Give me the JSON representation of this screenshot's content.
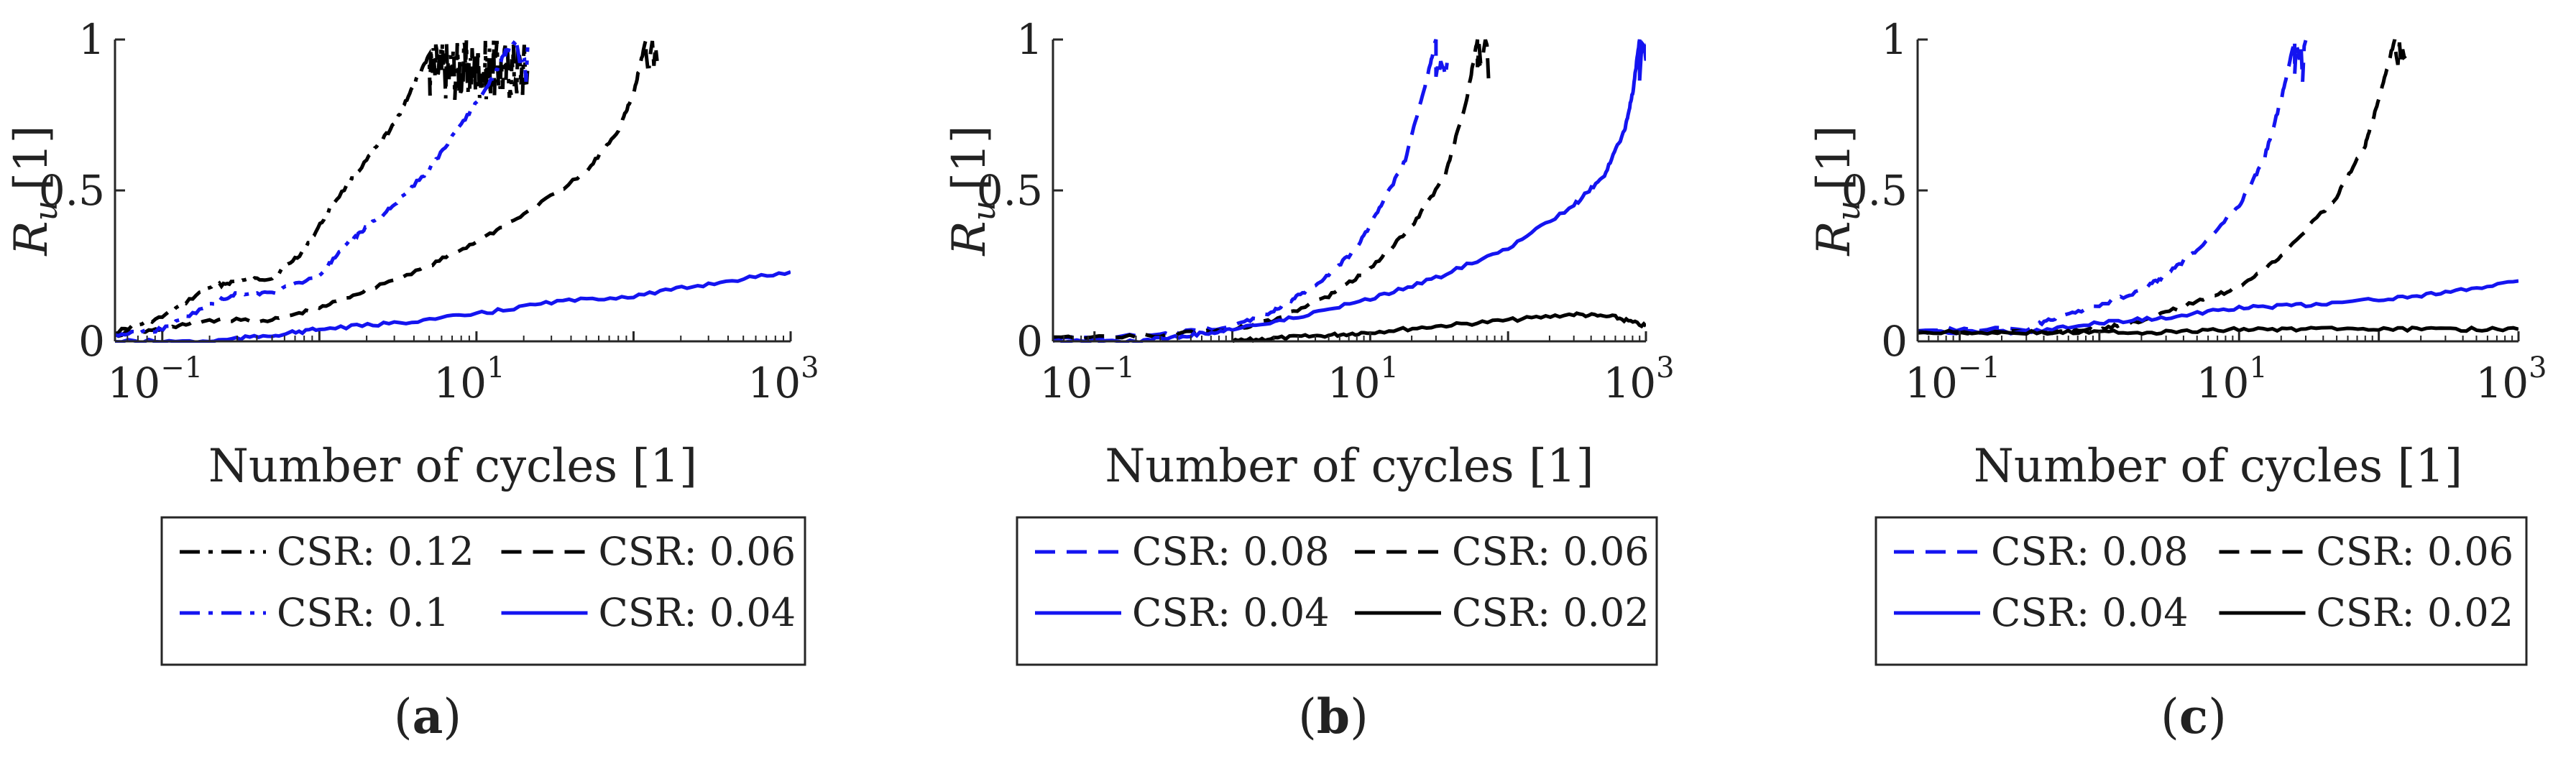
{
  "figure": {
    "captions": [
      "a",
      "b",
      "c"
    ]
  },
  "chart_data": [
    {
      "type": "line",
      "panel": "a",
      "xlabel": "Number of cycles [1]",
      "ylabel_main": "R",
      "ylabel_sub": "u",
      "ylabel_unit": "[1]",
      "xscale": "log",
      "xlim": [
        0.05,
        1000
      ],
      "ylim": [
        0,
        1
      ],
      "xticks": [
        {
          "base": "10",
          "exp": "−1",
          "value": 0.1
        },
        {
          "base": "10",
          "exp": "1",
          "value": 10
        },
        {
          "base": "10",
          "exp": "3",
          "value": 1000
        }
      ],
      "yticks": [
        {
          "label": "0",
          "value": 0
        },
        {
          "label": "0.5",
          "value": 0.5
        },
        {
          "label": "1",
          "value": 1
        }
      ],
      "legend_position": "below",
      "legend_columns": 2,
      "series": [
        {
          "name": "CSR: 0.12",
          "color": "#000000",
          "style": "dashdot",
          "x": [
            0.05,
            0.1,
            0.2,
            0.3,
            0.5,
            0.8,
            1.2,
            2,
            3,
            4,
            5
          ],
          "y": [
            0.03,
            0.08,
            0.18,
            0.2,
            0.21,
            0.3,
            0.45,
            0.6,
            0.72,
            0.85,
            0.95
          ],
          "noisy_tail": true
        },
        {
          "name": "CSR: 0.06",
          "color": "#000000",
          "style": "dashed",
          "x": [
            0.05,
            0.1,
            0.2,
            0.5,
            1,
            2,
            5,
            10,
            20,
            50,
            80,
            100,
            120
          ],
          "y": [
            0.02,
            0.04,
            0.07,
            0.07,
            0.11,
            0.17,
            0.25,
            0.33,
            0.42,
            0.56,
            0.7,
            0.82,
            1.0
          ]
        },
        {
          "name": "CSR: 0.1",
          "color": "#1414f0",
          "style": "dashdot",
          "x": [
            0.05,
            0.1,
            0.2,
            0.3,
            0.5,
            1,
            1.5,
            2,
            3,
            5,
            8,
            12,
            15,
            18
          ],
          "y": [
            0.02,
            0.04,
            0.12,
            0.16,
            0.16,
            0.22,
            0.32,
            0.38,
            0.45,
            0.57,
            0.72,
            0.85,
            0.95,
            1.0
          ]
        },
        {
          "name": "CSR: 0.04",
          "color": "#1414f0",
          "style": "solid",
          "x": [
            0.05,
            0.2,
            0.5,
            1,
            3,
            10,
            30,
            100,
            300,
            1000
          ],
          "y": [
            0.0,
            0.0,
            0.02,
            0.04,
            0.06,
            0.09,
            0.13,
            0.15,
            0.19,
            0.23
          ]
        }
      ]
    },
    {
      "type": "line",
      "panel": "b",
      "xlabel": "Number of cycles [1]",
      "ylabel_main": "R",
      "ylabel_sub": "u",
      "ylabel_unit": "[1]",
      "xscale": "log",
      "xlim": [
        0.05,
        1000
      ],
      "ylim": [
        0,
        1
      ],
      "xticks": [
        {
          "base": "10",
          "exp": "−1",
          "value": 0.1
        },
        {
          "base": "10",
          "exp": "1",
          "value": 10
        },
        {
          "base": "10",
          "exp": "3",
          "value": 1000
        }
      ],
      "yticks": [
        {
          "label": "0",
          "value": 0
        },
        {
          "label": "0.5",
          "value": 0.5
        },
        {
          "label": "1",
          "value": 1
        }
      ],
      "legend_position": "below",
      "legend_columns": 2,
      "series": [
        {
          "name": "CSR: 0.08",
          "color": "#1414f0",
          "style": "dashed",
          "x": [
            0.05,
            0.3,
            1,
            2,
            3,
            5,
            8,
            12,
            18,
            25,
            30
          ],
          "y": [
            0.01,
            0.02,
            0.05,
            0.1,
            0.15,
            0.22,
            0.31,
            0.45,
            0.6,
            0.85,
            1.0
          ]
        },
        {
          "name": "CSR: 0.06",
          "color": "#000000",
          "style": "dashed",
          "x": [
            0.05,
            0.3,
            1,
            2,
            5,
            10,
            20,
            35,
            50,
            60
          ],
          "y": [
            0.01,
            0.02,
            0.04,
            0.07,
            0.15,
            0.24,
            0.38,
            0.55,
            0.8,
            1.0
          ]
        },
        {
          "name": "CSR: 0.04",
          "color": "#1414f0",
          "style": "solid",
          "x": [
            0.05,
            0.2,
            0.5,
            1,
            3,
            10,
            30,
            100,
            300,
            500,
            700,
            800,
            900
          ],
          "y": [
            0.0,
            0.0,
            0.02,
            0.04,
            0.08,
            0.14,
            0.21,
            0.31,
            0.45,
            0.55,
            0.7,
            0.82,
            1.0
          ]
        },
        {
          "name": "CSR: 0.02",
          "color": "#000000",
          "style": "solid",
          "x": [
            1,
            2,
            5,
            10,
            30,
            100,
            300,
            600,
            1000
          ],
          "y": [
            0.0,
            0.01,
            0.02,
            0.03,
            0.05,
            0.07,
            0.09,
            0.08,
            0.05
          ]
        }
      ]
    },
    {
      "type": "line",
      "panel": "c",
      "xlabel": "Number of cycles [1]",
      "ylabel_main": "R",
      "ylabel_sub": "u",
      "ylabel_unit": "[1]",
      "xscale": "log",
      "xlim": [
        0.05,
        1000
      ],
      "ylim": [
        0,
        1
      ],
      "xticks": [
        {
          "base": "10",
          "exp": "−1",
          "value": 0.1
        },
        {
          "base": "10",
          "exp": "1",
          "value": 10
        },
        {
          "base": "10",
          "exp": "3",
          "value": 1000
        }
      ],
      "yticks": [
        {
          "label": "0",
          "value": 0
        },
        {
          "label": "0.5",
          "value": 0.5
        },
        {
          "label": "1",
          "value": 1
        }
      ],
      "legend_position": "below",
      "legend_columns": 2,
      "series": [
        {
          "name": "CSR: 0.08",
          "color": "#1414f0",
          "style": "dashed",
          "x": [
            0.05,
            0.3,
            0.5,
            1,
            2,
            3,
            5,
            10,
            15,
            20,
            25
          ],
          "y": [
            0.04,
            0.04,
            0.08,
            0.12,
            0.17,
            0.22,
            0.3,
            0.45,
            0.6,
            0.8,
            1.0
          ]
        },
        {
          "name": "CSR: 0.06",
          "color": "#000000",
          "style": "dashed",
          "x": [
            0.05,
            0.5,
            1,
            2,
            5,
            10,
            20,
            50,
            80,
            100,
            130
          ],
          "y": [
            0.03,
            0.03,
            0.04,
            0.07,
            0.13,
            0.18,
            0.28,
            0.48,
            0.65,
            0.8,
            1.0
          ]
        },
        {
          "name": "CSR: 0.04",
          "color": "#1414f0",
          "style": "solid",
          "x": [
            0.05,
            0.3,
            1,
            3,
            10,
            30,
            100,
            300,
            1000
          ],
          "y": [
            0.03,
            0.03,
            0.06,
            0.08,
            0.11,
            0.12,
            0.14,
            0.16,
            0.2
          ]
        },
        {
          "name": "CSR: 0.02",
          "color": "#000000",
          "style": "solid",
          "x": [
            0.05,
            0.3,
            1,
            3,
            10,
            30,
            100,
            300,
            1000
          ],
          "y": [
            0.03,
            0.03,
            0.03,
            0.03,
            0.04,
            0.04,
            0.04,
            0.04,
            0.04
          ]
        }
      ]
    }
  ]
}
